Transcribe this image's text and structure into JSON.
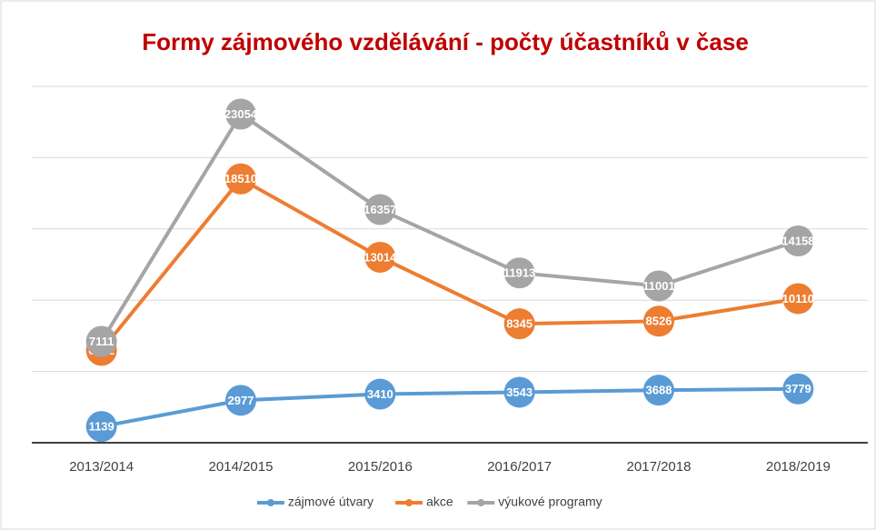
{
  "chart_data": {
    "type": "line",
    "title": "Formy zájmového vzdělávání - počty účastníků v čase",
    "categories": [
      "2013/2014",
      "2014/2015",
      "2015/2016",
      "2016/2017",
      "2017/2018",
      "2018/2019"
    ],
    "series": [
      {
        "name": "zájmové útvary",
        "color": "#5b9bd5",
        "values": [
          1139,
          2977,
          3410,
          3543,
          3688,
          3779
        ]
      },
      {
        "name": "akce",
        "color": "#ed7d31",
        "values": [
          6482,
          18510,
          13014,
          8345,
          8526,
          10110
        ]
      },
      {
        "name": "výukové programy",
        "color": "#a5a5a5",
        "values": [
          7111,
          23054,
          16357,
          11913,
          11001,
          14158
        ]
      }
    ],
    "ylim": [
      0,
      25000
    ],
    "yticks": [
      0,
      5000,
      10000,
      15000,
      20000,
      25000
    ],
    "grid": true,
    "legend": "bottom"
  }
}
